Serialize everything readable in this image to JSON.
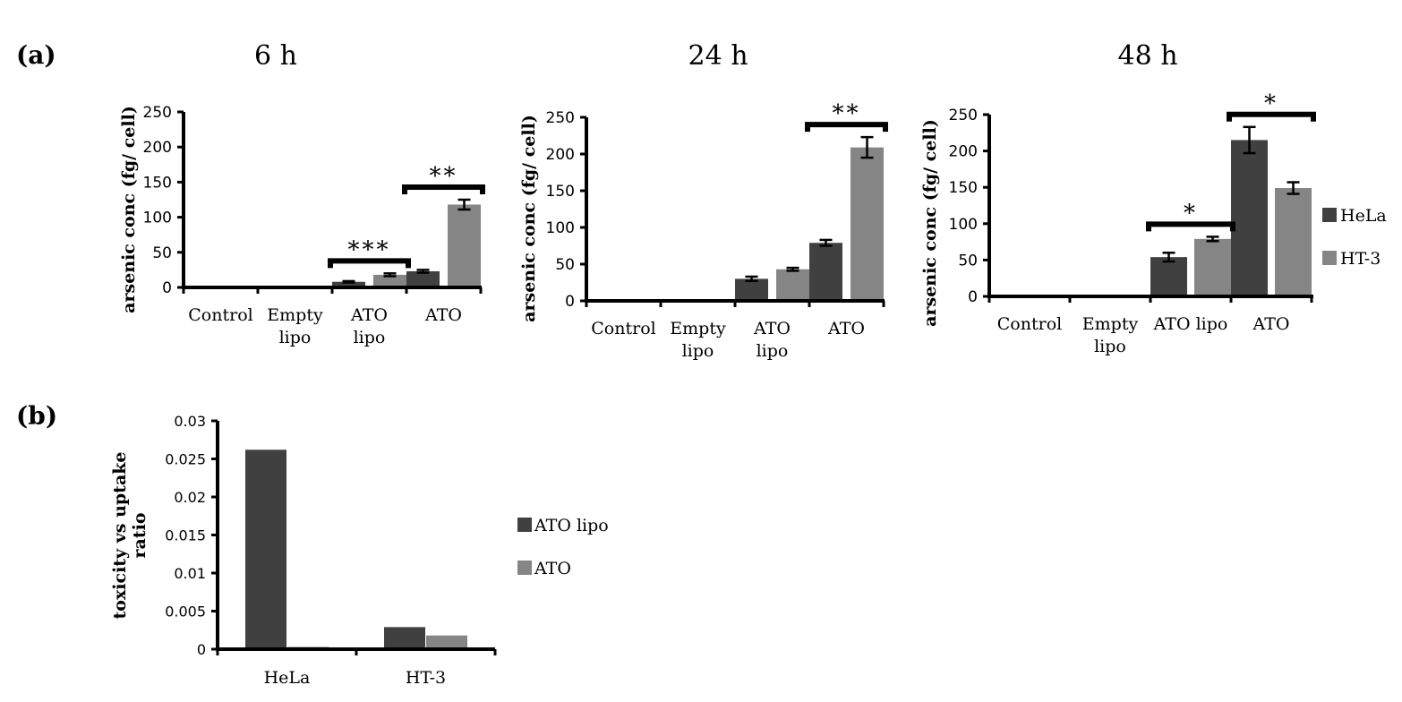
{
  "panel_labels": {
    "a": "(a)",
    "b": "(b)"
  },
  "colors": {
    "dark": "#404040",
    "light": "#858585",
    "axis": "#000000"
  },
  "legend_a": [
    "HeLa",
    "HT-3"
  ],
  "chart_data": [
    {
      "type": "bar",
      "title": "6 h",
      "ylabel": "arsenic conc (fg/ cell)",
      "ylim": [
        0,
        250
      ],
      "ticks": [
        "0",
        "50",
        "100",
        "150",
        "200",
        "250"
      ],
      "categories": [
        [
          "Control"
        ],
        [
          "Empty",
          "lipo"
        ],
        [
          "ATO",
          "lipo"
        ],
        [
          "ATO"
        ]
      ],
      "series": [
        {
          "name": "HeLa",
          "values": [
            0,
            0,
            8,
            23
          ],
          "errors": [
            0,
            0,
            1,
            2
          ]
        },
        {
          "name": "HT-3",
          "values": [
            0,
            0,
            18,
            118
          ],
          "errors": [
            0,
            0,
            2,
            7
          ]
        }
      ],
      "annotations": [
        {
          "category": 2,
          "text": "***"
        },
        {
          "category": 3,
          "text": "**"
        }
      ]
    },
    {
      "type": "bar",
      "title": "24 h",
      "ylabel": "arsenic conc (fg/ cell)",
      "ylim": [
        0,
        250
      ],
      "ticks": [
        "0",
        "50",
        "100",
        "150",
        "200",
        "250"
      ],
      "categories": [
        [
          "Control"
        ],
        [
          "Empty",
          "lipo"
        ],
        [
          "ATO",
          "lipo"
        ],
        [
          "ATO"
        ]
      ],
      "series": [
        {
          "name": "HeLa",
          "values": [
            0,
            0,
            30,
            79
          ],
          "errors": [
            0,
            0,
            3,
            4
          ]
        },
        {
          "name": "HT-3",
          "values": [
            0,
            0,
            43,
            209
          ],
          "errors": [
            0,
            0,
            2,
            14
          ]
        }
      ],
      "annotations": [
        {
          "category": 3,
          "text": "**"
        }
      ]
    },
    {
      "type": "bar",
      "title": "48 h",
      "ylabel": "arsenic conc (fg/ cell)",
      "ylim": [
        0,
        250
      ],
      "ticks": [
        "0",
        "50",
        "100",
        "150",
        "200",
        "250"
      ],
      "categories": [
        [
          "Control"
        ],
        [
          "Empty",
          "lipo"
        ],
        [
          "ATO lipo"
        ],
        [
          "ATO"
        ]
      ],
      "series": [
        {
          "name": "HeLa",
          "values": [
            0,
            0,
            54,
            215
          ],
          "errors": [
            0,
            0,
            6,
            18
          ]
        },
        {
          "name": "HT-3",
          "values": [
            0,
            0,
            79,
            149
          ],
          "errors": [
            0,
            0,
            3,
            8
          ]
        }
      ],
      "annotations": [
        {
          "category": 2,
          "text": "*"
        },
        {
          "category": 3,
          "text": "*"
        }
      ]
    },
    {
      "type": "bar",
      "title": "",
      "ylabel": "toxicity vs uptake ratio",
      "ylim": [
        0,
        0.03
      ],
      "ticks": [
        "0",
        "0.005",
        "0.01",
        "0.015",
        "0.02",
        "0.025",
        "0.03"
      ],
      "categories": [
        [
          "HeLa"
        ],
        [
          "HT-3"
        ]
      ],
      "series": [
        {
          "name": "ATO lipo",
          "values": [
            0.0262,
            0.0029
          ]
        },
        {
          "name": "ATO",
          "values": [
            0.0003,
            0.0018
          ]
        }
      ]
    }
  ]
}
